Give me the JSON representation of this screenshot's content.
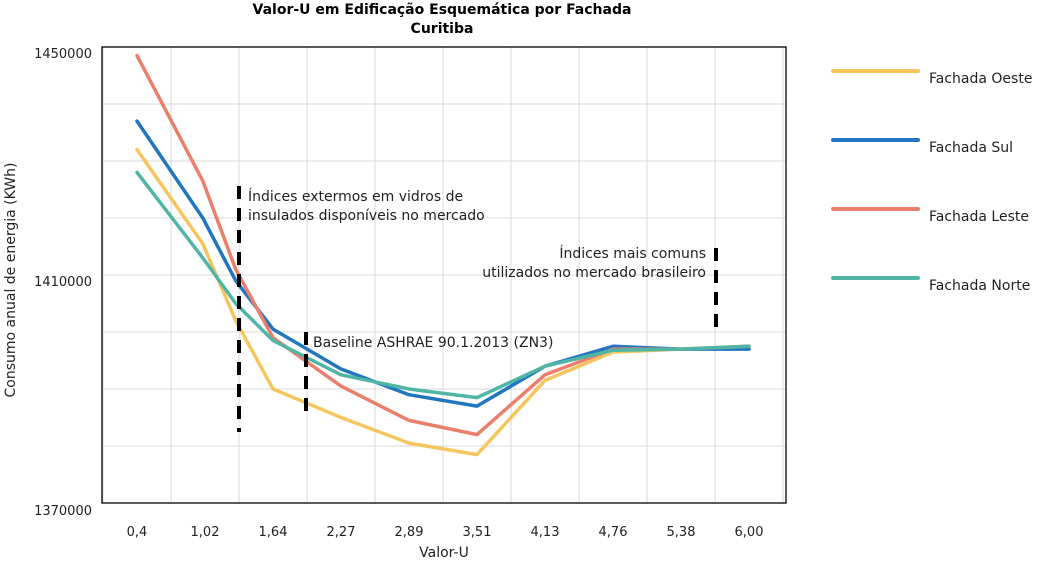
{
  "chart_data": {
    "type": "line",
    "title": "Valor-U  em Edificação Esquemática por Fachada",
    "subtitle": "Curitiba",
    "xlabel": "Valor-U",
    "ylabel": "Consumo anual de energia (KWh)",
    "categories": [
      "0,4",
      "1,02",
      "1,64",
      "2,27",
      "2,89",
      "3,51",
      "4,13",
      "4,76",
      "5,38",
      "6,00"
    ],
    "y_tick_labels": [
      "1450000",
      "1410000",
      "1370000"
    ],
    "ylim": [
      1370000,
      1450000
    ],
    "grid": true,
    "legend_position": "right",
    "x": [
      0.4,
      1.0,
      1.3,
      1.64,
      2.27,
      2.89,
      3.51,
      4.13,
      4.76,
      5.38,
      6.0
    ],
    "series": [
      {
        "name": "Fachada Oeste",
        "color": "#f5c65e",
        "values": [
          1432000,
          1415500,
          1402000,
          1390000,
          1385000,
          1380500,
          1378500,
          1391500,
          1396500,
          1397000,
          1397500
        ]
      },
      {
        "name": "Fachada Sul",
        "color": "#2176bf",
        "values": [
          1437000,
          1420000,
          1409000,
          1400500,
          1393500,
          1389000,
          1387000,
          1394000,
          1397500,
          1397000,
          1397000
        ]
      },
      {
        "name": "Fachada Leste",
        "color": "#ea7f6c",
        "values": [
          1448500,
          1426500,
          1411000,
          1399000,
          1390500,
          1384500,
          1382000,
          1392500,
          1397000,
          1397000,
          1397500
        ]
      },
      {
        "name": "Fachada Norte",
        "color": "#4fb6a6",
        "values": [
          1428000,
          1413000,
          1405000,
          1398500,
          1392500,
          1390000,
          1388500,
          1394000,
          1396800,
          1397000,
          1397500
        ]
      }
    ],
    "annotations": [
      {
        "id": "externos",
        "lines": [
          "Índices extermos em vidros de",
          "insulados disponíveis no mercado"
        ]
      },
      {
        "id": "ashrae",
        "lines": [
          "Baseline ASHRAE 90.1.2013 (ZN3)"
        ]
      },
      {
        "id": "comuns",
        "lines": [
          "Índices mais comuns",
          "utilizados no mercado brasileiro"
        ]
      }
    ]
  }
}
